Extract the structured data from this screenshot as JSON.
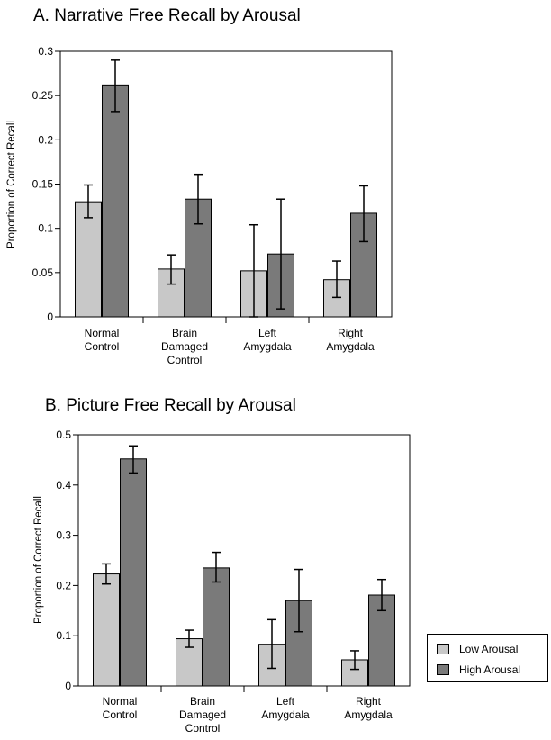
{
  "colors": {
    "low": "#c8c8c8",
    "high": "#7a7a7a",
    "axis": "#000000"
  },
  "legend": {
    "items": [
      {
        "label": "Low Arousal",
        "color": "#c8c8c8"
      },
      {
        "label": "High Arousal",
        "color": "#7a7a7a"
      }
    ],
    "placement": "bottom-right"
  },
  "chart_data": [
    {
      "type": "bar",
      "title": "A. Narrative Free Recall by Arousal",
      "ylabel": "Proportion of Correct Recall",
      "xlabel": "",
      "categories": [
        [
          "Normal",
          "Control"
        ],
        [
          "Brain",
          "Damaged",
          "Control"
        ],
        [
          "Left",
          "Amygdala"
        ],
        [
          "Right",
          "Amygdala"
        ]
      ],
      "yticks": [
        "0",
        "0.05",
        "0.1",
        "0.15",
        "0.2",
        "0.25",
        "0.3"
      ],
      "ylim": [
        0,
        0.3
      ],
      "series": [
        {
          "name": "Low Arousal",
          "values": [
            0.13,
            0.054,
            0.052,
            0.042
          ],
          "err_low": [
            0.112,
            0.037,
            0.0,
            0.022
          ],
          "err_high": [
            0.149,
            0.07,
            0.104,
            0.063
          ]
        },
        {
          "name": "High Arousal",
          "values": [
            0.262,
            0.133,
            0.071,
            0.117
          ],
          "err_low": [
            0.232,
            0.105,
            0.009,
            0.085
          ],
          "err_high": [
            0.29,
            0.161,
            0.133,
            0.148
          ]
        }
      ]
    },
    {
      "type": "bar",
      "title": "B. Picture Free Recall by Arousal",
      "ylabel": "Proportion of Correct Recall",
      "xlabel": "",
      "categories": [
        [
          "Normal",
          "Control"
        ],
        [
          "Brain",
          "Damaged",
          "Control"
        ],
        [
          "Left",
          "Amygdala"
        ],
        [
          "Right",
          "Amygdala"
        ]
      ],
      "yticks": [
        "0",
        "0.1",
        "0.2",
        "0.3",
        "0.4",
        "0.5"
      ],
      "ylim": [
        0,
        0.5
      ],
      "series": [
        {
          "name": "Low Arousal",
          "values": [
            0.223,
            0.094,
            0.083,
            0.052
          ],
          "err_low": [
            0.203,
            0.077,
            0.035,
            0.033
          ],
          "err_high": [
            0.243,
            0.111,
            0.132,
            0.07
          ]
        },
        {
          "name": "High Arousal",
          "values": [
            0.452,
            0.235,
            0.17,
            0.181
          ],
          "err_low": [
            0.424,
            0.207,
            0.108,
            0.15
          ],
          "err_high": [
            0.478,
            0.266,
            0.232,
            0.212
          ]
        }
      ]
    }
  ]
}
